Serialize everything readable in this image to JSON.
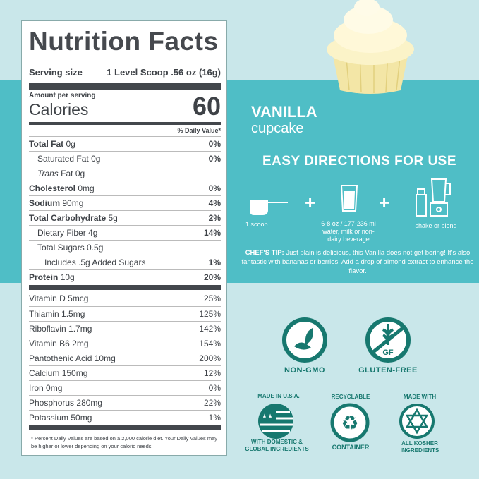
{
  "label": {
    "title": "Nutrition Facts",
    "serving_label": "Serving size",
    "serving_value": "1 Level Scoop .56 oz (16g)",
    "amount_per_serving": "Amount per serving",
    "calories_label": "Calories",
    "calories_value": "60",
    "daily_value_header": "% Daily Value*",
    "nutrients": [
      {
        "name": "Total Fat",
        "amount": "0g",
        "dv": "0%",
        "bold": true,
        "indent": 0
      },
      {
        "name": "Saturated Fat",
        "amount": "0g",
        "dv": "0%",
        "bold": false,
        "indent": 1
      },
      {
        "name": "Trans",
        "name_suffix": "Fat",
        "amount": "0g",
        "dv": "",
        "bold": false,
        "indent": 1
      },
      {
        "name": "Cholesterol",
        "amount": "0mg",
        "dv": "0%",
        "bold": true,
        "indent": 0
      },
      {
        "name": "Sodium",
        "amount": "90mg",
        "dv": "4%",
        "bold": true,
        "indent": 0
      },
      {
        "name": "Total Carbohydrate",
        "amount": "5g",
        "dv": "2%",
        "bold": true,
        "indent": 0
      },
      {
        "name": "Dietary Fiber",
        "amount": "4g",
        "dv": "14%",
        "bold": false,
        "indent": 1
      },
      {
        "name": "Total Sugars",
        "amount": "0.5g",
        "dv": "",
        "bold": false,
        "indent": 1
      },
      {
        "name": "Includes .5g Added Sugars",
        "amount": "",
        "dv": "1%",
        "bold": false,
        "indent": 2
      },
      {
        "name": "Protein",
        "amount": "10g",
        "dv": "20%",
        "bold": true,
        "indent": 0
      }
    ],
    "vitamins": [
      {
        "name": "Vitamin D",
        "amount": "5mcg",
        "dv": "25%"
      },
      {
        "name": "Thiamin",
        "amount": "1.5mg",
        "dv": "125%"
      },
      {
        "name": "Riboflavin",
        "amount": "1.7mg",
        "dv": "142%"
      },
      {
        "name": "Vitamin B6",
        "amount": "2mg",
        "dv": "154%"
      },
      {
        "name": "Pantothenic Acid",
        "amount": "10mg",
        "dv": "200%"
      },
      {
        "name": "Calcium",
        "amount": "150mg",
        "dv": "12%"
      },
      {
        "name": "Iron",
        "amount": "0mg",
        "dv": "0%"
      },
      {
        "name": "Phosphorus",
        "amount": "280mg",
        "dv": "22%"
      },
      {
        "name": "Potassium",
        "amount": "50mg",
        "dv": "1%"
      }
    ],
    "footnote": "* Percent Daily Values are based on a 2,000 calorie diet. Your Daily Values may be higher or lower depending on your caloric needs."
  },
  "flavor": {
    "name": "VANILLA",
    "sub": "cupcake"
  },
  "directions": {
    "title": "EASY DIRECTIONS FOR USE",
    "steps": [
      "1 scoop",
      "6-8 oz / 177-236 ml water,  milk or non-dairy beverage",
      "shake or blend"
    ],
    "plus": "+",
    "tip_label": "CHEF'S TIP:",
    "tip_text": " Just plain is delicious, this Vanilla does not get boring! It's also fantastic with bananas or berries.  Add a drop of almond extract to enhance the flavor."
  },
  "badges": {
    "non_gmo": "NON-GMO",
    "gluten_free": "GLUTEN-FREE",
    "gf_mark": "GF",
    "usa_top": "MADE IN U.S.A.",
    "usa_bottom": "WITH DOMESTIC & GLOBAL INGREDIENTS",
    "recycle_top": "RECYCLABLE",
    "recycle_bottom": "CONTAINER",
    "kosher_top": "MADE WITH",
    "kosher_bottom": "ALL KOSHER INGREDIENTS"
  },
  "colors": {
    "background": "#c9e7ea",
    "band": "#4fbec6",
    "badge": "#17786f",
    "label_text": "#3e4247"
  }
}
